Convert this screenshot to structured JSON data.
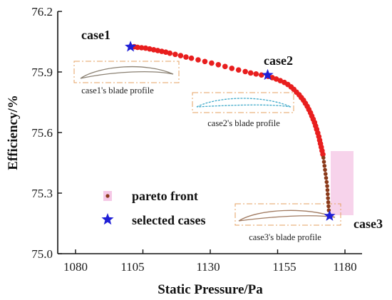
{
  "chart_data": {
    "type": "scatter",
    "xlabel": "Static Pressure/Pa",
    "ylabel": "Efficiency/%",
    "xlim": [
      1080,
      1180
    ],
    "ylim": [
      75.0,
      76.2
    ],
    "x_ticks": [
      "1080",
      "1105",
      "1130",
      "1155",
      "1180"
    ],
    "y_ticks": [
      "75.0",
      "75.3",
      "75.6",
      "75.9",
      "76.2"
    ],
    "grid": false,
    "legend_position": "lower-left",
    "series": [
      {
        "name": "pareto front",
        "color": "#e81e1e",
        "points": [
          [
            1100.5,
            76.025
          ],
          [
            1101.8,
            76.025
          ],
          [
            1103.0,
            76.022
          ],
          [
            1104.5,
            76.02
          ],
          [
            1106.0,
            76.018
          ],
          [
            1107.5,
            76.014
          ],
          [
            1109.0,
            76.01
          ],
          [
            1110.5,
            76.006
          ],
          [
            1112.0,
            76.002
          ],
          [
            1113.5,
            75.998
          ],
          [
            1115.0,
            75.993
          ],
          [
            1117.0,
            75.987
          ],
          [
            1119.0,
            75.981
          ],
          [
            1121.0,
            75.974
          ],
          [
            1123.0,
            75.968
          ],
          [
            1125.5,
            75.96
          ],
          [
            1128.0,
            75.952
          ],
          [
            1130.5,
            75.944
          ],
          [
            1133.0,
            75.936
          ],
          [
            1135.5,
            75.927
          ],
          [
            1138.0,
            75.918
          ],
          [
            1140.5,
            75.91
          ],
          [
            1143.0,
            75.902
          ],
          [
            1145.0,
            75.895
          ],
          [
            1147.0,
            75.89
          ],
          [
            1149.0,
            75.885
          ],
          [
            1151.5,
            75.878
          ],
          [
            1153.0,
            75.872
          ],
          [
            1154.5,
            75.865
          ],
          [
            1156.0,
            75.857
          ],
          [
            1157.5,
            75.848
          ],
          [
            1158.8,
            75.838
          ],
          [
            1160.0,
            75.826
          ],
          [
            1161.0,
            75.814
          ],
          [
            1162.0,
            75.8
          ],
          [
            1163.0,
            75.787
          ],
          [
            1163.8,
            75.773
          ],
          [
            1164.6,
            75.76
          ],
          [
            1165.3,
            75.745
          ],
          [
            1166.0,
            75.73
          ],
          [
            1166.6,
            75.714
          ],
          [
            1167.2,
            75.698
          ],
          [
            1167.7,
            75.682
          ],
          [
            1168.2,
            75.666
          ],
          [
            1168.7,
            75.65
          ],
          [
            1169.1,
            75.633
          ],
          [
            1169.5,
            75.616
          ],
          [
            1169.9,
            75.598
          ],
          [
            1170.3,
            75.58
          ],
          [
            1170.6,
            75.562
          ],
          [
            1170.9,
            75.545
          ],
          [
            1171.2,
            75.528
          ],
          [
            1171.5,
            75.51
          ],
          [
            1171.8,
            75.492
          ]
        ]
      },
      {
        "name": "",
        "color": "#8b3a1a",
        "points": [
          [
            1172.0,
            75.475
          ],
          [
            1172.2,
            75.455
          ],
          [
            1172.4,
            75.435
          ],
          [
            1172.6,
            75.415
          ],
          [
            1172.8,
            75.395
          ],
          [
            1173.0,
            75.375
          ],
          [
            1173.2,
            75.355
          ],
          [
            1173.4,
            75.335
          ],
          [
            1173.5,
            75.315
          ],
          [
            1173.6,
            75.295
          ],
          [
            1173.7,
            75.275
          ],
          [
            1173.8,
            75.255
          ],
          [
            1173.9,
            75.235
          ],
          [
            1174.0,
            75.215
          ]
        ]
      },
      {
        "name": "selected cases",
        "color": "#1f1fd6",
        "points": [
          [
            1100.4,
            76.025
          ],
          [
            1151.3,
            75.885
          ],
          [
            1174.3,
            75.187
          ]
        ],
        "labels": [
          "case1",
          "case2",
          "case3"
        ]
      }
    ],
    "insets": [
      {
        "caption": "case1's blade profile",
        "color": "#8a8072"
      },
      {
        "caption": "case2's blade profile",
        "color": "#3fa9c9"
      },
      {
        "caption": "case3's blade profile",
        "color": "#a07a60"
      }
    ]
  }
}
